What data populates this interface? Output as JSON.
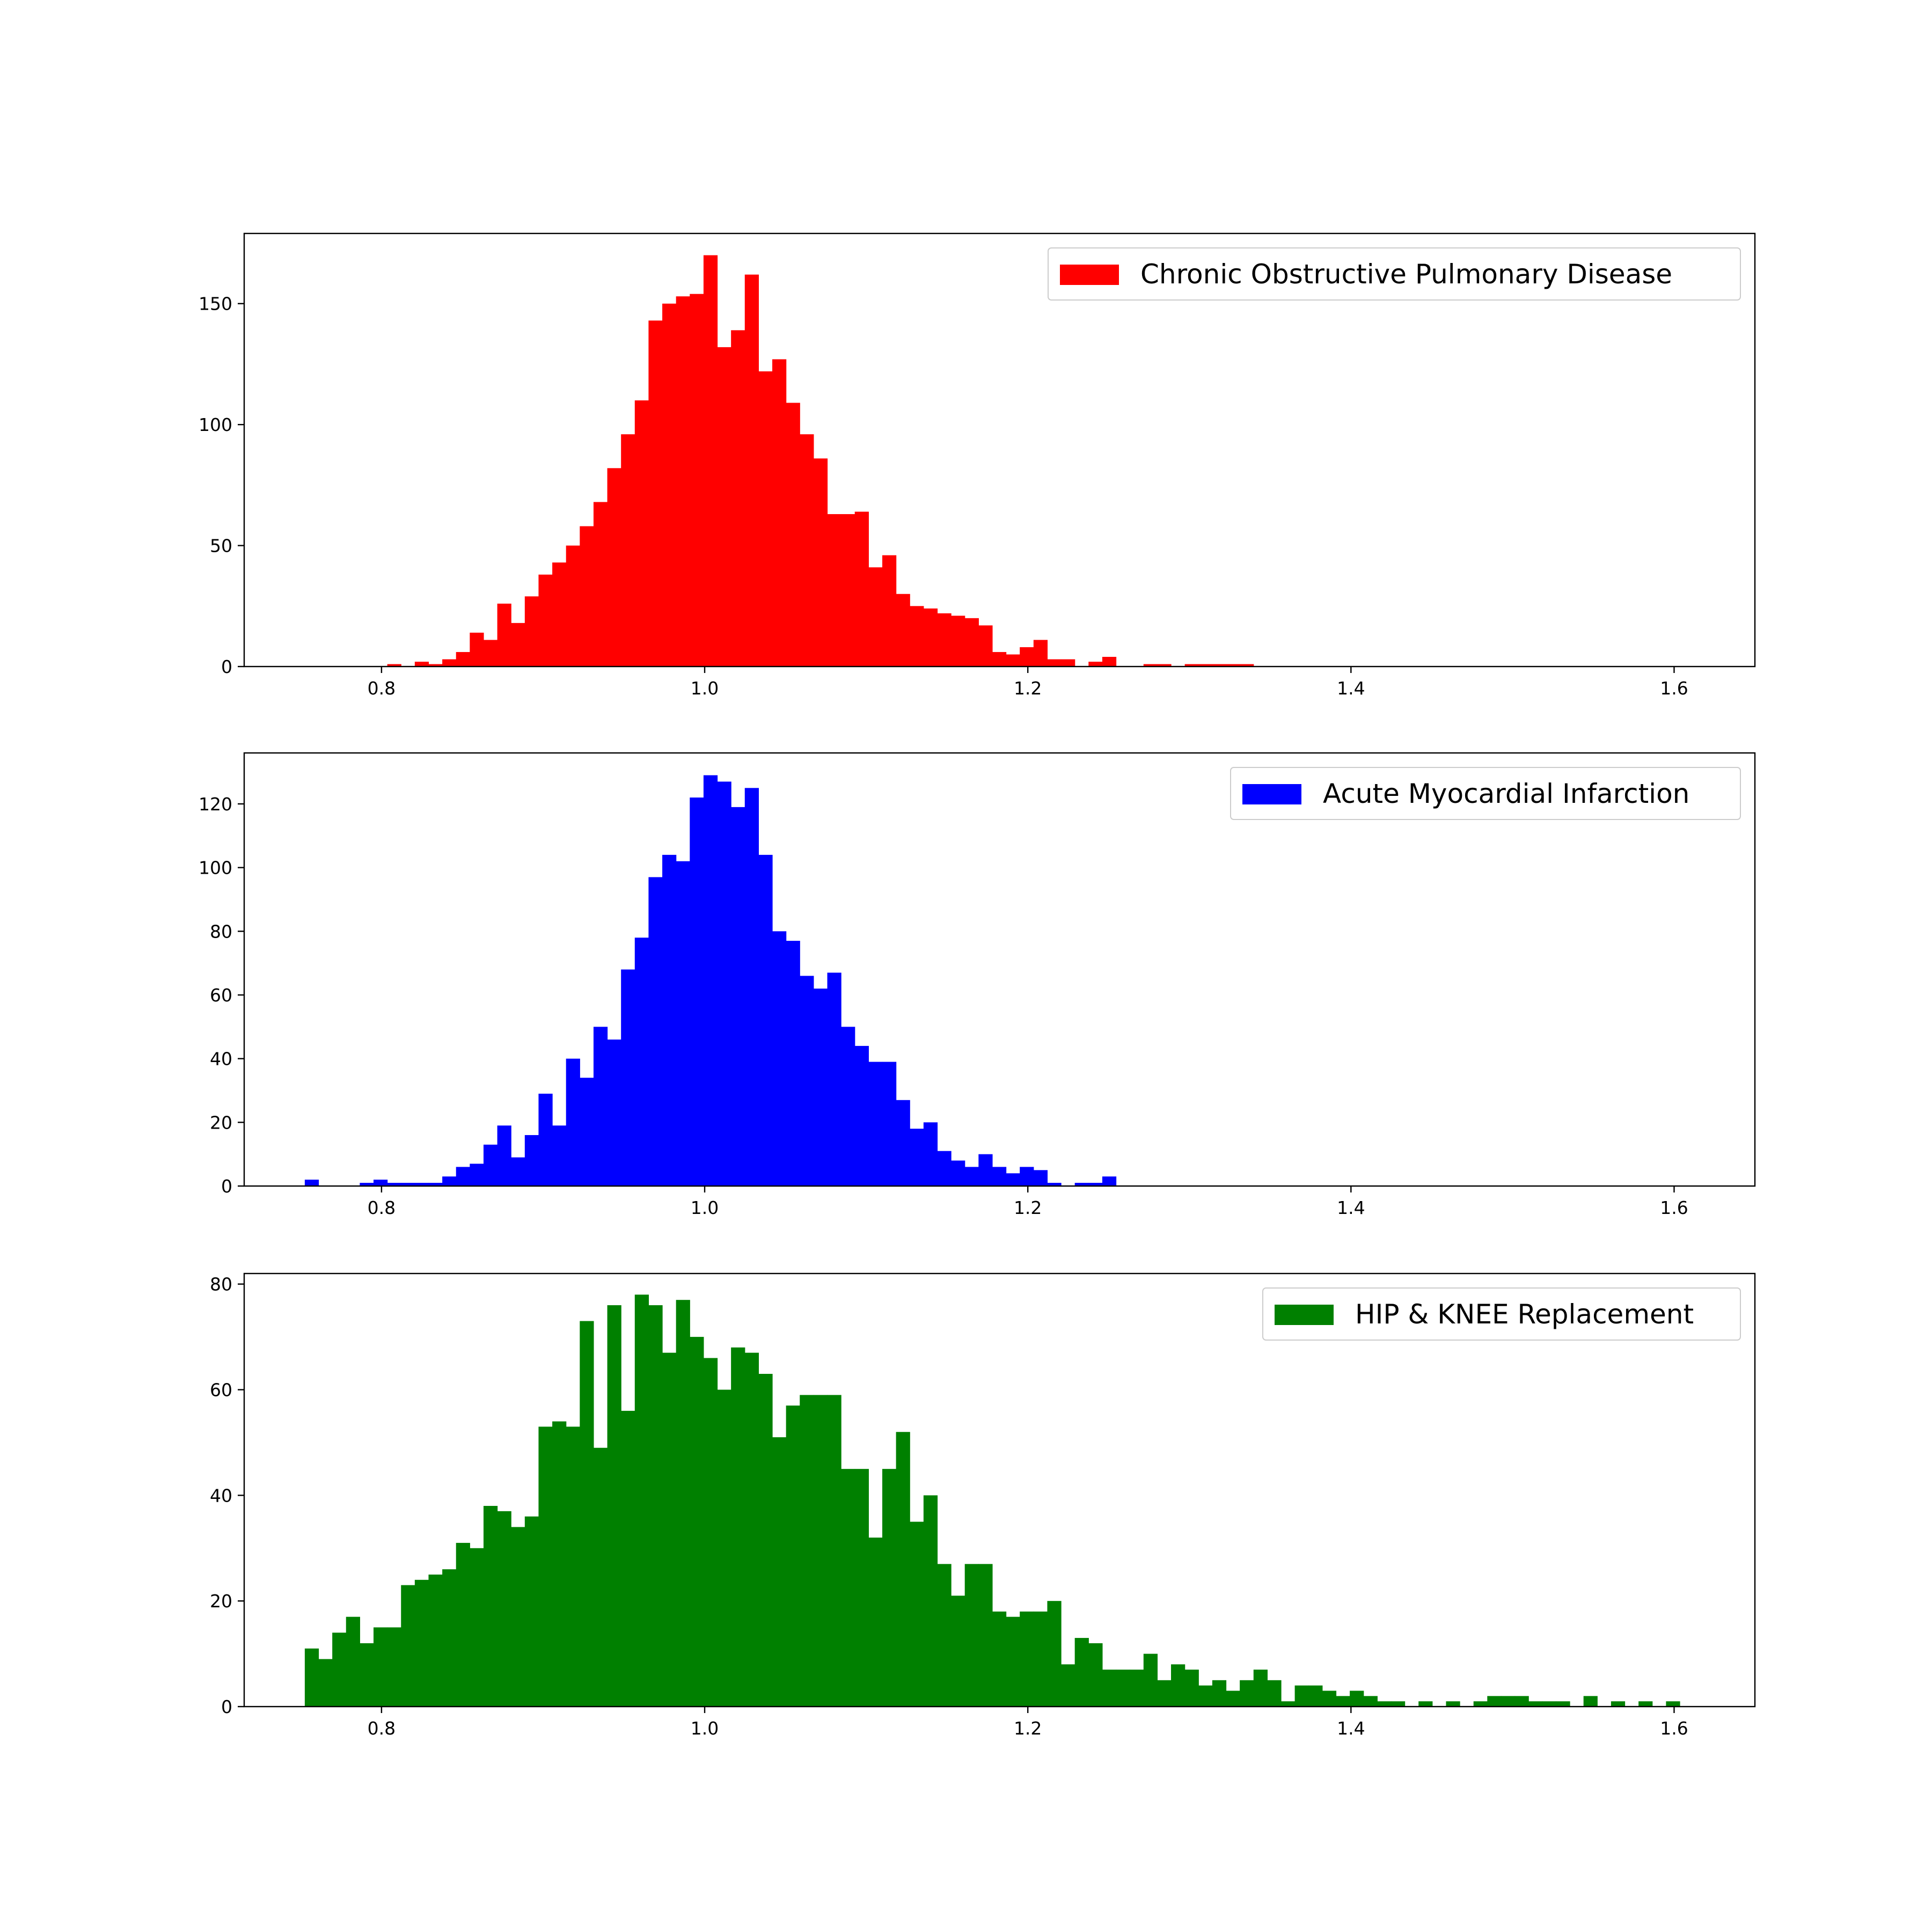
{
  "chart_data": [
    {
      "type": "bar",
      "title": "",
      "xlabel": "",
      "ylabel": "",
      "xlim": [
        0.715,
        1.65
      ],
      "ylim": [
        0,
        179
      ],
      "xticks": [
        0.8,
        1.0,
        1.2,
        1.4,
        1.6
      ],
      "xtick_labels": [
        "0.8",
        "1.0",
        "1.2",
        "1.4",
        "1.6"
      ],
      "yticks": [
        0,
        50,
        100,
        150
      ],
      "ytick_labels": [
        "0",
        "50",
        "100",
        "150"
      ],
      "grid": false,
      "legend_position": "top-right",
      "bin_start": 0.7525,
      "bin_width": 0.00851,
      "series": [
        {
          "name": "Chronic Obstructive Pulmonary Disease",
          "color": "#ff0000",
          "values": [
            0,
            0,
            0,
            0,
            0,
            0,
            1,
            0,
            2,
            1,
            3,
            6,
            14,
            11,
            26,
            18,
            29,
            38,
            43,
            50,
            58,
            68,
            82,
            96,
            110,
            143,
            150,
            153,
            154,
            170,
            132,
            139,
            162,
            122,
            127,
            109,
            96,
            86,
            63,
            63,
            64,
            41,
            46,
            30,
            25,
            24,
            22,
            21,
            20,
            17,
            6,
            5,
            8,
            11,
            3,
            3,
            0,
            2,
            4,
            0,
            0,
            1,
            1,
            0,
            1,
            1,
            1,
            1,
            1
          ]
        },
        {
          "name": "Acute Myocardial Infarction",
          "color": "#0000ff",
          "values": [
            2,
            0,
            0,
            0,
            1,
            2,
            1,
            1,
            1,
            1,
            3,
            6,
            7,
            13,
            19,
            9,
            16,
            29,
            19,
            40,
            34,
            50,
            46,
            68,
            78,
            97,
            104,
            102,
            122,
            129,
            127,
            119,
            125,
            104,
            80,
            77,
            66,
            62,
            67,
            50,
            44,
            39,
            39,
            27,
            18,
            20,
            11,
            8,
            6,
            10,
            6,
            4,
            6,
            5,
            1,
            0,
            1,
            1,
            3
          ]
        }
      ]
    },
    {
      "type": "bar",
      "title": "",
      "xlabel": "",
      "ylabel": "",
      "xlim": [
        0.715,
        1.65
      ],
      "ylim": [
        0,
        82
      ],
      "xticks": [
        0.8,
        1.0,
        1.2,
        1.4,
        1.6
      ],
      "xtick_labels": [
        "0.8",
        "1.0",
        "1.2",
        "1.4",
        "1.6"
      ],
      "yticks": [
        0,
        20,
        40,
        60,
        80
      ],
      "ytick_labels": [
        "0",
        "20",
        "40",
        "60",
        "80"
      ],
      "grid": false,
      "legend_position": "top-right",
      "bin_start": 0.7525,
      "bin_width": 0.00851,
      "series": [
        {
          "name": "HIP & KNEE Replacement",
          "color": "#008000",
          "values": [
            11,
            9,
            14,
            17,
            12,
            15,
            15,
            23,
            24,
            25,
            26,
            31,
            30,
            38,
            37,
            34,
            36,
            53,
            54,
            53,
            73,
            49,
            76,
            56,
            78,
            76,
            67,
            77,
            70,
            66,
            60,
            68,
            67,
            63,
            51,
            57,
            59,
            59,
            59,
            45,
            45,
            32,
            45,
            52,
            35,
            40,
            27,
            21,
            27,
            27,
            18,
            17,
            18,
            18,
            20,
            8,
            13,
            12,
            7,
            7,
            7,
            10,
            5,
            8,
            7,
            4,
            5,
            3,
            5,
            7,
            5,
            1,
            4,
            4,
            3,
            2,
            3,
            2,
            1,
            1,
            0,
            1,
            0,
            1,
            0,
            1,
            2,
            2,
            2,
            1,
            1,
            1,
            0,
            2,
            0,
            1,
            0,
            1,
            0,
            1,
            0
          ]
        }
      ]
    }
  ]
}
